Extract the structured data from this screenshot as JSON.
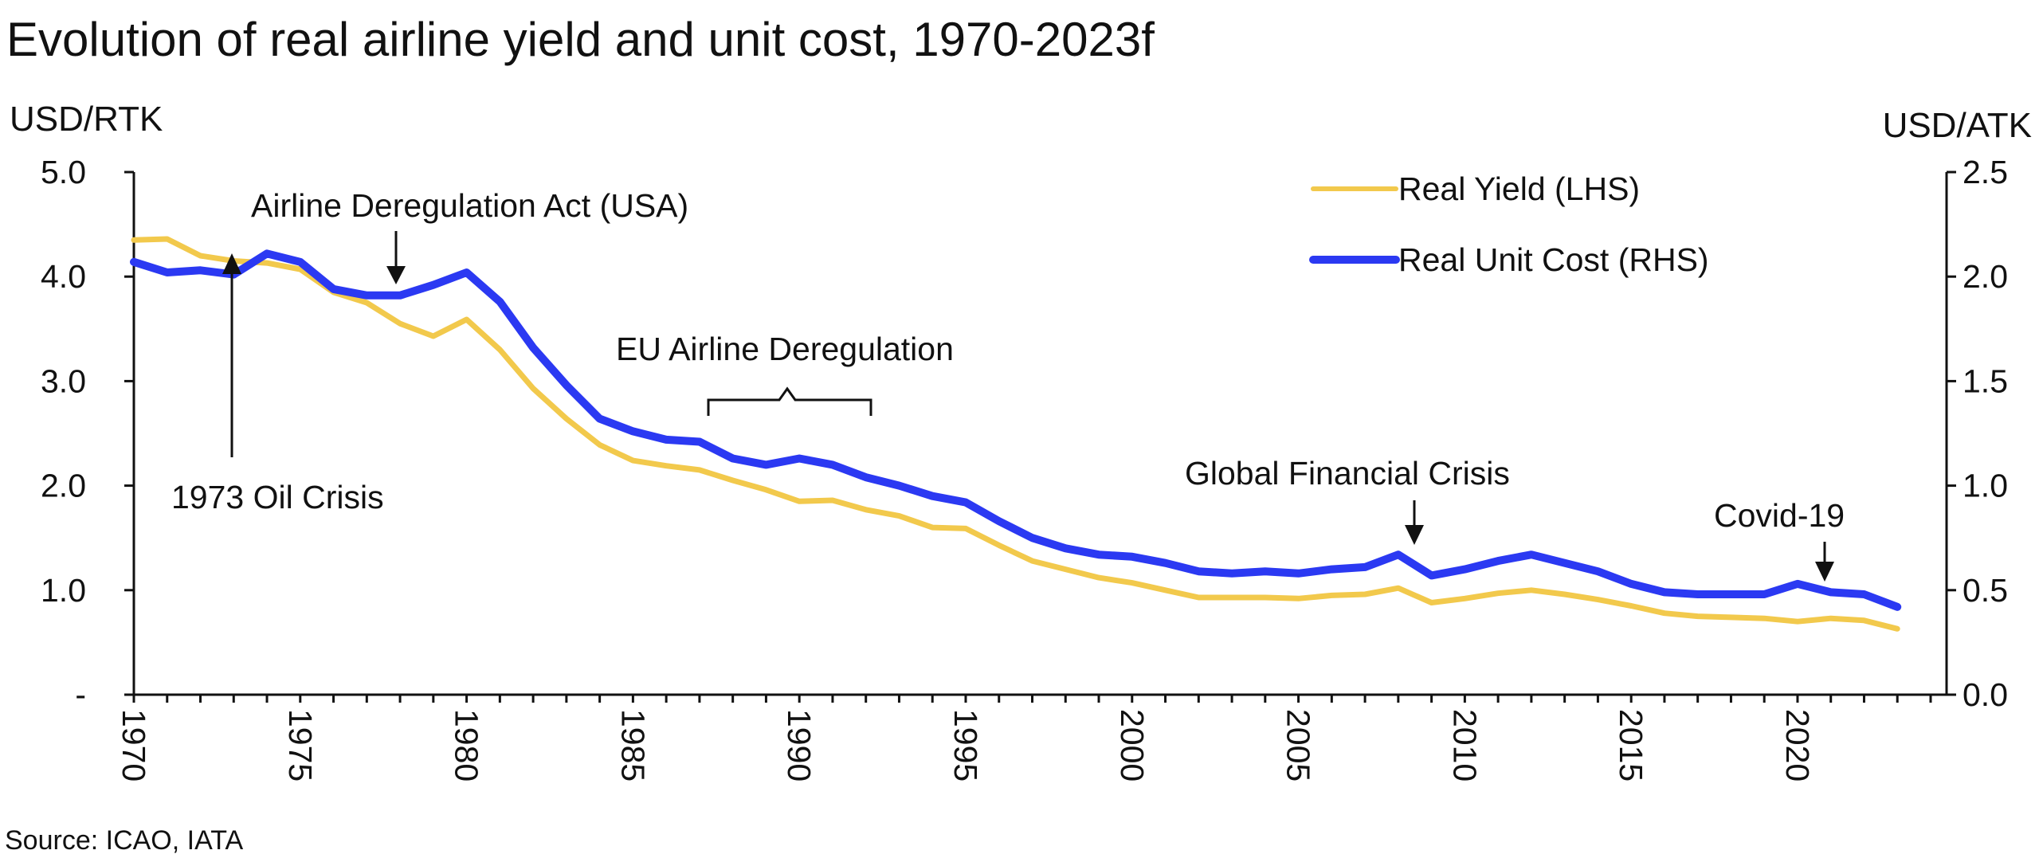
{
  "chart_data": {
    "type": "line",
    "title": "Evolution of real airline yield and unit cost, 1970-2023f",
    "left_axis_label": "USD/RTK",
    "right_axis_label": "USD/ATK",
    "source": "Source: ICAO, IATA",
    "y_left": {
      "ylim": [
        0,
        5
      ],
      "ticks": [
        {
          "value": 0,
          "label": "-"
        },
        {
          "value": 1,
          "label": "1.0"
        },
        {
          "value": 2,
          "label": "2.0"
        },
        {
          "value": 3,
          "label": "3.0"
        },
        {
          "value": 4,
          "label": "4.0"
        },
        {
          "value": 5,
          "label": "5.0"
        }
      ]
    },
    "y_right": {
      "ylim": [
        0,
        2.5
      ],
      "ticks": [
        {
          "value": 0,
          "label": "0.0"
        },
        {
          "value": 0.5,
          "label": "0.5"
        },
        {
          "value": 1.0,
          "label": "1.0"
        },
        {
          "value": 1.5,
          "label": "1.5"
        },
        {
          "value": 2.0,
          "label": "2.0"
        },
        {
          "value": 2.5,
          "label": "2.5"
        }
      ]
    },
    "x": [
      1970,
      1971,
      1972,
      1973,
      1974,
      1975,
      1976,
      1977,
      1978,
      1979,
      1980,
      1981,
      1982,
      1983,
      1984,
      1985,
      1986,
      1987,
      1988,
      1989,
      1990,
      1991,
      1992,
      1993,
      1994,
      1995,
      1996,
      1997,
      1998,
      1999,
      2000,
      2001,
      2002,
      2003,
      2004,
      2005,
      2006,
      2007,
      2008,
      2009,
      2010,
      2011,
      2012,
      2013,
      2014,
      2015,
      2016,
      2017,
      2018,
      2019,
      2020,
      2021,
      2022,
      2023
    ],
    "x_tick_labels": [
      "1970",
      "1975",
      "1980",
      "1985",
      "1990",
      "1995",
      "2000",
      "2005",
      "2010",
      "2015",
      "2020"
    ],
    "series": [
      {
        "name": "Real Yield (LHS)",
        "axis": "left",
        "color": "#F2C94C",
        "values": [
          4.35,
          4.36,
          4.2,
          4.15,
          4.13,
          4.07,
          3.85,
          3.75,
          3.55,
          3.43,
          3.59,
          3.3,
          2.93,
          2.64,
          2.39,
          2.24,
          2.19,
          2.15,
          2.05,
          1.96,
          1.85,
          1.86,
          1.77,
          1.71,
          1.6,
          1.59,
          1.43,
          1.28,
          1.2,
          1.12,
          1.07,
          1.0,
          0.93,
          0.93,
          0.93,
          0.92,
          0.95,
          0.96,
          1.02,
          0.88,
          0.92,
          0.97,
          1.0,
          0.96,
          0.91,
          0.85,
          0.78,
          0.75,
          0.74,
          0.73,
          0.7,
          0.73,
          0.71,
          0.63
        ]
      },
      {
        "name": "Real Unit Cost (RHS)",
        "axis": "right",
        "color": "#2B39F2",
        "values": [
          2.07,
          2.02,
          2.03,
          2.01,
          2.11,
          2.07,
          1.94,
          1.91,
          1.91,
          1.96,
          2.02,
          1.88,
          1.66,
          1.48,
          1.32,
          1.26,
          1.22,
          1.21,
          1.13,
          1.1,
          1.13,
          1.1,
          1.04,
          1.0,
          0.95,
          0.92,
          0.83,
          0.75,
          0.7,
          0.67,
          0.66,
          0.63,
          0.59,
          0.58,
          0.59,
          0.58,
          0.6,
          0.61,
          0.67,
          0.57,
          0.6,
          0.64,
          0.67,
          0.63,
          0.59,
          0.53,
          0.49,
          0.48,
          0.48,
          0.48,
          0.53,
          0.49,
          0.48,
          0.42
        ]
      }
    ],
    "annotations": [
      {
        "text": "Airline Deregulation Act (USA)",
        "year": 1978
      },
      {
        "text": "1973 Oil Crisis",
        "year": 1973
      },
      {
        "text": "EU Airline Deregulation",
        "range": [
          1987,
          1992
        ]
      },
      {
        "text": "Global Financial Crisis",
        "year": 2008
      },
      {
        "text": "Covid-19",
        "year": 2020
      }
    ]
  }
}
